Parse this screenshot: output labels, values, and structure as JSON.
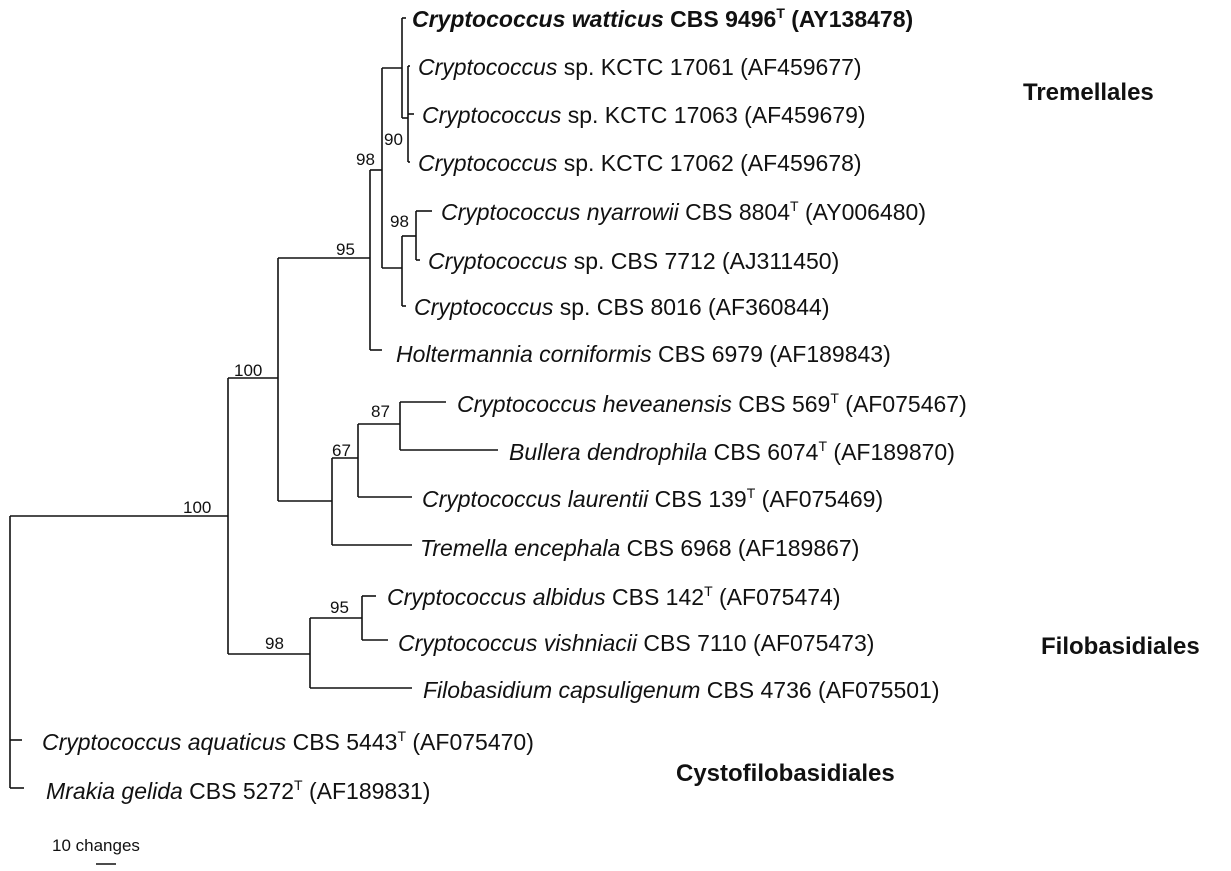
{
  "tips": [
    {
      "id": "watticus",
      "genus": "Cryptococcus watticus",
      "rest": " CBS 9496",
      "type": true,
      "acc": " (AY138478)",
      "bold": true
    },
    {
      "id": "k17061",
      "genus": "Cryptococcus",
      "rest": " sp. KCTC 17061 (AF459677)",
      "type": false,
      "acc": "",
      "bold": false
    },
    {
      "id": "k17063",
      "genus": "Cryptococcus",
      "rest": " sp. KCTC 17063 (AF459679)",
      "type": false,
      "acc": "",
      "bold": false
    },
    {
      "id": "k17062",
      "genus": "Cryptococcus",
      "rest": " sp. KCTC 17062 (AF459678)",
      "type": false,
      "acc": "",
      "bold": false
    },
    {
      "id": "nyarrowii",
      "genus": "Cryptococcus nyarrowii",
      "rest": " CBS 8804",
      "type": true,
      "acc": " (AY006480)",
      "bold": false
    },
    {
      "id": "cbs7712",
      "genus": "Cryptococcus",
      "rest": " sp. CBS 7712 (AJ311450)",
      "type": false,
      "acc": "",
      "bold": false
    },
    {
      "id": "cbs8016",
      "genus": "Cryptococcus",
      "rest": " sp. CBS 8016 (AF360844)",
      "type": false,
      "acc": "",
      "bold": false
    },
    {
      "id": "holtermannia",
      "genus": "Holtermannia corniformis",
      "rest": " CBS 6979 (AF189843)",
      "type": false,
      "acc": "",
      "bold": false
    },
    {
      "id": "heveanensis",
      "genus": "Cryptococcus heveanensis",
      "rest": " CBS 569",
      "type": true,
      "acc": " (AF075467)",
      "bold": false
    },
    {
      "id": "bullera",
      "genus": "Bullera dendrophila",
      "rest": " CBS 6074",
      "type": true,
      "acc": " (AF189870)",
      "bold": false
    },
    {
      "id": "laurentii",
      "genus": "Cryptococcus laurentii",
      "rest": " CBS 139",
      "type": true,
      "acc": " (AF075469)",
      "bold": false
    },
    {
      "id": "tremella",
      "genus": "Tremella encephala",
      "rest": " CBS 6968 (AF189867)",
      "type": false,
      "acc": "",
      "bold": false
    },
    {
      "id": "albidus",
      "genus": "Cryptococcus albidus",
      "rest": " CBS 142",
      "type": true,
      "acc": " (AF075474)",
      "bold": false
    },
    {
      "id": "vishniacii",
      "genus": "Cryptococcus vishniacii",
      "rest": " CBS 7110 (AF075473)",
      "type": false,
      "acc": "",
      "bold": false
    },
    {
      "id": "filobasidium",
      "genus": "Filobasidium capsuligenum",
      "rest": " CBS 4736 (AF075501)",
      "type": false,
      "acc": "",
      "bold": false
    },
    {
      "id": "aquaticus",
      "genus": "Cryptococcus aquaticus",
      "rest": " CBS 5443",
      "type": true,
      "acc": " (AF075470)",
      "bold": false
    },
    {
      "id": "mrakia",
      "genus": "Mrakia gelida",
      "rest": " CBS 5272",
      "type": true,
      "acc": " (AF189831)",
      "bold": false
    }
  ],
  "type_marker": "T",
  "support_values": [
    "100",
    "100",
    "95",
    "98",
    "90",
    "98",
    "67",
    "87",
    "98",
    "95"
  ],
  "groups": {
    "tremellales": "Tremellales",
    "filobasidiales": "Filobasidiales",
    "cystofilobasidiales": "Cystofilobasidiales"
  },
  "scale_bar": {
    "label": "10 changes"
  }
}
